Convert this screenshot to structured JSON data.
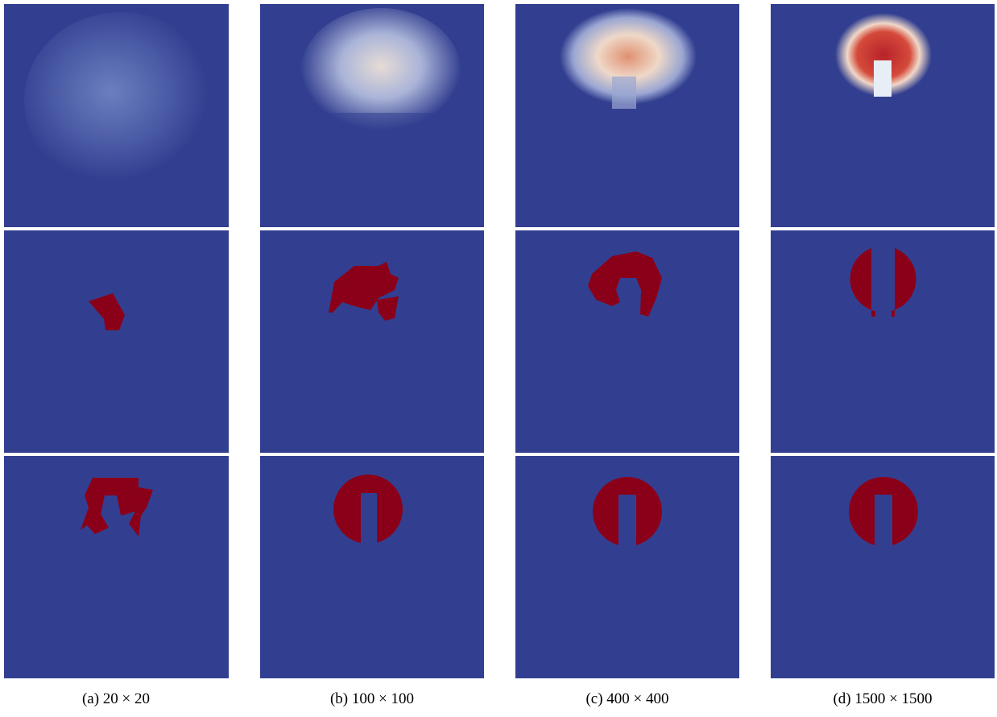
{
  "captions": [
    "(a) 20 × 20",
    "(b) 100 × 100",
    "(c) 400 × 400",
    "(d) 1500 × 1500"
  ]
}
